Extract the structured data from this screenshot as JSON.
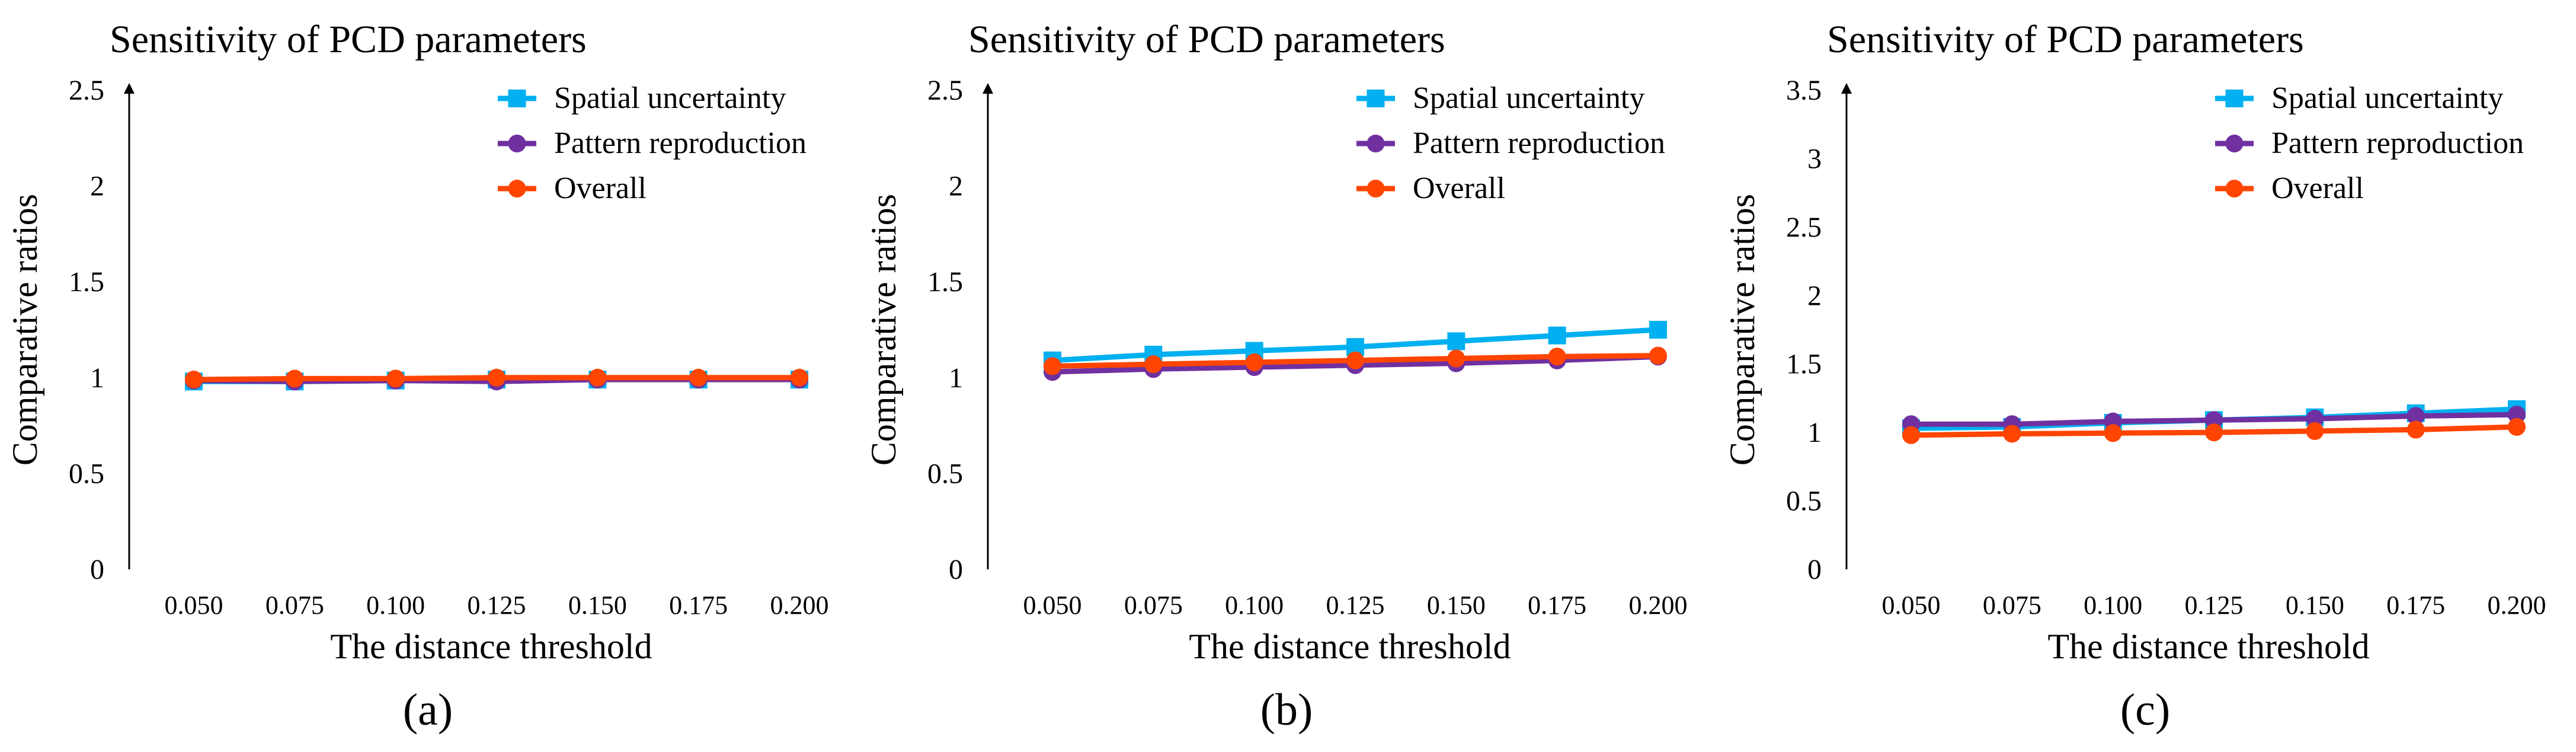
{
  "colors": {
    "spatial": "#00B0F0",
    "pattern": "#7030A0",
    "overall": "#FF4500",
    "axis": "#000000"
  },
  "chart_data": [
    {
      "type": "line",
      "panel_label": "(a)",
      "title": "Sensitivity of PCD parameters",
      "xlabel": "The distance  threshold",
      "ylabel": "Comparative ratios",
      "categories": [
        "0.050",
        "0.075",
        "0.100",
        "0.125",
        "0.150",
        "0.175",
        "0.200"
      ],
      "ylim": [
        0,
        2.5
      ],
      "yticks": [
        "0",
        "0.5",
        "1",
        "1.5",
        "2",
        "2.5"
      ],
      "series": [
        {
          "name": "Spatial uncertainty",
          "marker": "square",
          "values": [
            0.98,
            0.98,
            0.985,
            0.99,
            0.99,
            0.99,
            0.99
          ]
        },
        {
          "name": "Pattern reproduction",
          "marker": "circle",
          "values": [
            0.985,
            0.98,
            0.985,
            0.98,
            0.99,
            0.99,
            0.99
          ]
        },
        {
          "name": "Overall",
          "marker": "circle",
          "values": [
            0.99,
            0.995,
            0.995,
            1.0,
            1.0,
            1.0,
            1.0
          ]
        }
      ]
    },
    {
      "type": "line",
      "panel_label": "(b)",
      "title": "Sensitivity of PCD parameters",
      "xlabel": "The distance  threshold",
      "ylabel": "Comparative ratios",
      "categories": [
        "0.050",
        "0.075",
        "0.100",
        "0.125",
        "0.150",
        "0.175",
        "0.200"
      ],
      "ylim": [
        0,
        2.5
      ],
      "yticks": [
        "0",
        "0.5",
        "1",
        "1.5",
        "2",
        "2.5"
      ],
      "series": [
        {
          "name": "Spatial uncertainty",
          "marker": "square",
          "values": [
            1.09,
            1.12,
            1.14,
            1.16,
            1.19,
            1.22,
            1.25
          ]
        },
        {
          "name": "Pattern reproduction",
          "marker": "circle",
          "values": [
            1.03,
            1.045,
            1.055,
            1.065,
            1.075,
            1.09,
            1.11
          ]
        },
        {
          "name": "Overall",
          "marker": "circle",
          "values": [
            1.06,
            1.07,
            1.08,
            1.09,
            1.1,
            1.11,
            1.115
          ]
        }
      ]
    },
    {
      "type": "line",
      "panel_label": "(c)",
      "title": "Sensitivity of PCD parameters",
      "xlabel": "The distance  threshold",
      "ylabel": "Comparative ratios",
      "categories": [
        "0.050",
        "0.075",
        "0.100",
        "0.125",
        "0.150",
        "0.175",
        "0.200"
      ],
      "ylim": [
        0,
        3.5
      ],
      "yticks": [
        "0",
        "0.5",
        "1",
        "1.5",
        "2",
        "2.5",
        "3",
        "3.5"
      ],
      "series": [
        {
          "name": "Spatial uncertainty",
          "marker": "square",
          "values": [
            1.03,
            1.04,
            1.07,
            1.09,
            1.11,
            1.14,
            1.17
          ]
        },
        {
          "name": "Pattern reproduction",
          "marker": "circle",
          "values": [
            1.06,
            1.06,
            1.08,
            1.09,
            1.1,
            1.12,
            1.13
          ]
        },
        {
          "name": "Overall",
          "marker": "circle",
          "values": [
            0.98,
            0.99,
            0.995,
            1.0,
            1.01,
            1.02,
            1.04
          ]
        }
      ]
    }
  ]
}
